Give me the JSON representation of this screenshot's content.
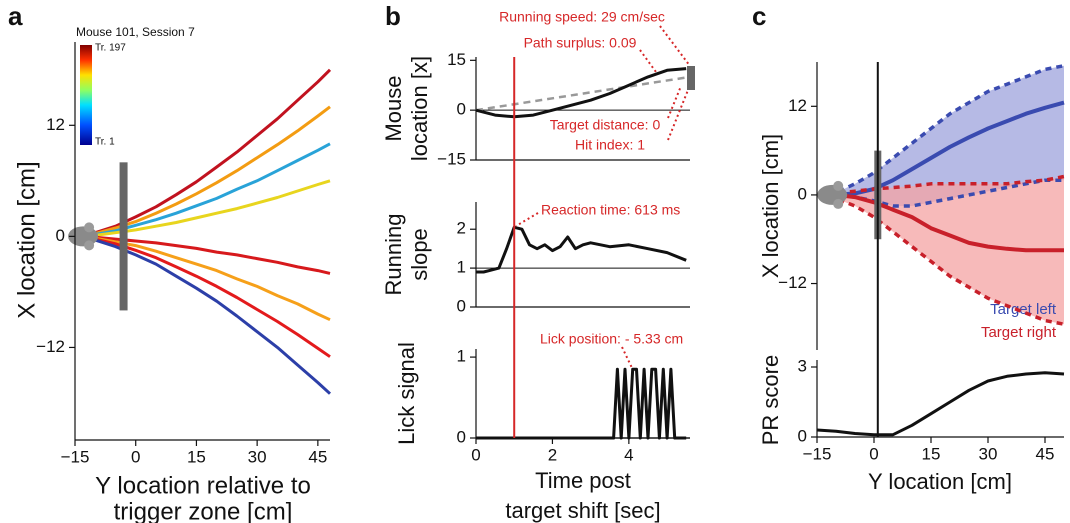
{
  "chart_data": [
    {
      "type": "line",
      "panel_label": "a",
      "colorbar_title": "Mouse 101, Session 7",
      "colorbar_top": "Tr. 197",
      "colorbar_bottom": "Tr. 1",
      "xlabel": [
        "Y location relative to",
        "trigger zone [cm]"
      ],
      "ylabel": "X location [cm]",
      "xlim": [
        -15,
        48
      ],
      "xticks": [
        {
          "value": -15,
          "label": "−15"
        },
        0,
        15,
        30,
        45
      ],
      "ylim": [
        -22,
        21
      ],
      "yticks": [
        12,
        0,
        {
          "value": -12,
          "label": "−12"
        }
      ],
      "x": [
        -15,
        -10,
        -5,
        0,
        5,
        10,
        15,
        20,
        25,
        30,
        35,
        40,
        45,
        48
      ],
      "series": [
        {
          "color": "#c1121f",
          "values": [
            0,
            0.4,
            1.1,
            2.1,
            3.2,
            4.5,
            5.9,
            7.5,
            9.1,
            10.9,
            12.7,
            14.7,
            16.7,
            18
          ]
        },
        {
          "color": "#f39c12",
          "values": [
            0,
            0.3,
            0.9,
            1.6,
            2.5,
            3.5,
            4.6,
            5.8,
            7.1,
            8.5,
            9.9,
            11.4,
            13,
            14
          ]
        },
        {
          "color": "#29a3d8",
          "values": [
            0,
            0.2,
            0.6,
            1.2,
            1.8,
            2.5,
            3.3,
            4.1,
            5.1,
            6,
            7.1,
            8.2,
            9.3,
            10
          ]
        },
        {
          "color": "#e8d51e",
          "values": [
            0,
            0.1,
            0.4,
            0.7,
            1.1,
            1.5,
            2,
            2.5,
            3,
            3.6,
            4.2,
            4.9,
            5.6,
            6
          ]
        },
        {
          "color": "#d7191c",
          "values": [
            0,
            -0.1,
            -0.3,
            -0.5,
            -0.7,
            -1,
            -1.3,
            -1.7,
            -2,
            -2.4,
            -2.8,
            -3.3,
            -3.7,
            -4
          ]
        },
        {
          "color": "#f6a01a",
          "values": [
            0,
            -0.2,
            -0.6,
            -1,
            -1.6,
            -2.3,
            -3,
            -3.7,
            -4.6,
            -5.4,
            -6.4,
            -7.3,
            -8.4,
            -9
          ]
        },
        {
          "color": "#e31a1c",
          "values": [
            0,
            -0.3,
            -0.8,
            -1.5,
            -2.3,
            -3.3,
            -4.3,
            -5.4,
            -6.6,
            -7.9,
            -9.2,
            -10.6,
            -12.1,
            -13
          ]
        },
        {
          "color": "#2c3fa8",
          "values": [
            0,
            -0.4,
            -1.1,
            -2,
            -3,
            -4.3,
            -5.6,
            -7,
            -8.6,
            -10.3,
            -12,
            -13.9,
            -15.8,
            -17
          ]
        }
      ]
    },
    {
      "type": "line",
      "panel_label": "b",
      "xlabel": [
        "Time post",
        "target shift [sec]"
      ],
      "xlim": [
        0,
        5.6
      ],
      "xticks": [
        0,
        2,
        4
      ],
      "marker_x": 1,
      "marker_color": "#d62728",
      "subplots": [
        {
          "ylabel": [
            "Mouse",
            "location [x]"
          ],
          "ylim": [
            -15,
            16
          ],
          "yticks": [
            15,
            0,
            {
              "value": -15,
              "label": "−15"
            }
          ],
          "hline": 0,
          "x": [
            0,
            0.5,
            1,
            1.5,
            2,
            2.5,
            3,
            3.5,
            4,
            4.5,
            5,
            5.5
          ],
          "values": [
            0,
            -1.5,
            -2,
            -1.5,
            0,
            1.5,
            3,
            5,
            7.5,
            10,
            12,
            12.5
          ],
          "color": "#111111",
          "reference": {
            "x": [
              0,
              5.6
            ],
            "values": [
              0,
              10
            ],
            "color": "#999999"
          },
          "annotations": [
            "Running speed: 29 cm/sec",
            "Path surplus: 0.09",
            "Target distance: 0",
            "Hit index: 1"
          ]
        },
        {
          "ylabel": [
            "Running",
            "slope"
          ],
          "ylim": [
            0,
            2.7
          ],
          "yticks": [
            2,
            1,
            0
          ],
          "hline": 1,
          "x": [
            0,
            0.2,
            0.4,
            0.6,
            0.8,
            1,
            1.2,
            1.4,
            1.6,
            1.8,
            2,
            2.2,
            2.4,
            2.6,
            2.8,
            3,
            3.5,
            4,
            4.5,
            5,
            5.5
          ],
          "values": [
            0.9,
            0.9,
            0.95,
            1.0,
            1.5,
            2.05,
            2.0,
            1.6,
            1.5,
            1.6,
            1.45,
            1.55,
            1.8,
            1.5,
            1.6,
            1.65,
            1.55,
            1.6,
            1.5,
            1.4,
            1.2
          ],
          "color": "#111111",
          "annotations": [
            "Reaction time: 613 ms"
          ]
        },
        {
          "ylabel": [
            "Lick signal"
          ],
          "ylim": [
            0,
            1.1
          ],
          "yticks": [
            1,
            0
          ],
          "x": [
            0,
            3.6,
            3.7,
            3.8,
            3.9,
            4.0,
            4.1,
            4.2,
            4.3,
            4.4,
            4.5,
            4.6,
            4.7,
            4.8,
            4.9,
            5.0,
            5.1,
            5.2,
            5.5
          ],
          "values": [
            0,
            0,
            0.85,
            0,
            0.85,
            0,
            0.85,
            0.85,
            0,
            0.85,
            0,
            0.85,
            0.85,
            0,
            0.85,
            0,
            0.85,
            0,
            0
          ],
          "color": "#111111",
          "annotations": [
            "Lick position: - 5.33 cm"
          ]
        }
      ]
    },
    {
      "type": "line",
      "panel_label": "c",
      "xlabel": "Y location [cm]",
      "ylabel": "X location [cm]",
      "xlim": [
        -15,
        50
      ],
      "xticks": [
        {
          "value": -15,
          "label": "−15"
        },
        0,
        15,
        30,
        45
      ],
      "ylim": [
        -21,
        18
      ],
      "yticks": [
        12,
        0,
        {
          "value": -12,
          "label": "−12"
        }
      ],
      "marker_x": 1,
      "marker_color": "#111111",
      "x": [
        -15,
        -10,
        -5,
        0,
        5,
        10,
        15,
        20,
        25,
        30,
        35,
        40,
        45,
        50
      ],
      "series": [
        {
          "name": "Target left",
          "color": "#3a4bb0",
          "fill": "#9ea3dc",
          "values": [
            0,
            0,
            0.2,
            0.8,
            2,
            3.5,
            5,
            6.5,
            7.8,
            9,
            10,
            11,
            11.8,
            12.5
          ],
          "upper": [
            0,
            0.3,
            1.5,
            3,
            5,
            7,
            9,
            11,
            12.5,
            14,
            15,
            16,
            17,
            17.5
          ],
          "lower": [
            0,
            0,
            -0.3,
            -0.8,
            -1.5,
            -1.5,
            -1,
            -0.5,
            0,
            0.5,
            1,
            1.5,
            2,
            2
          ]
        },
        {
          "name": "Target right",
          "color": "#c8202a",
          "fill": "#f4a3a3",
          "values": [
            0,
            0,
            -0.3,
            -1,
            -2,
            -3,
            -4.5,
            -5.5,
            -6.5,
            -7,
            -7.3,
            -7.5,
            -7.5,
            -7.5
          ],
          "upper": [
            0,
            0.2,
            0.5,
            0.8,
            1,
            1.2,
            1.5,
            1.5,
            1.5,
            1.5,
            1.5,
            1.8,
            2,
            2.5
          ],
          "lower": [
            0,
            -0.5,
            -1.5,
            -3,
            -5,
            -7,
            -9,
            -11,
            -12.5,
            -14,
            -15,
            -16,
            -17,
            -17.5
          ]
        }
      ],
      "bottom": {
        "ylabel": "PR score",
        "ylim": [
          0,
          3.3
        ],
        "yticks": [
          3,
          0
        ],
        "color": "#111111",
        "values": [
          0.3,
          0.25,
          0.15,
          0.1,
          0.1,
          0.5,
          1.0,
          1.5,
          2.0,
          2.4,
          2.6,
          2.7,
          2.75,
          2.7
        ]
      }
    }
  ]
}
